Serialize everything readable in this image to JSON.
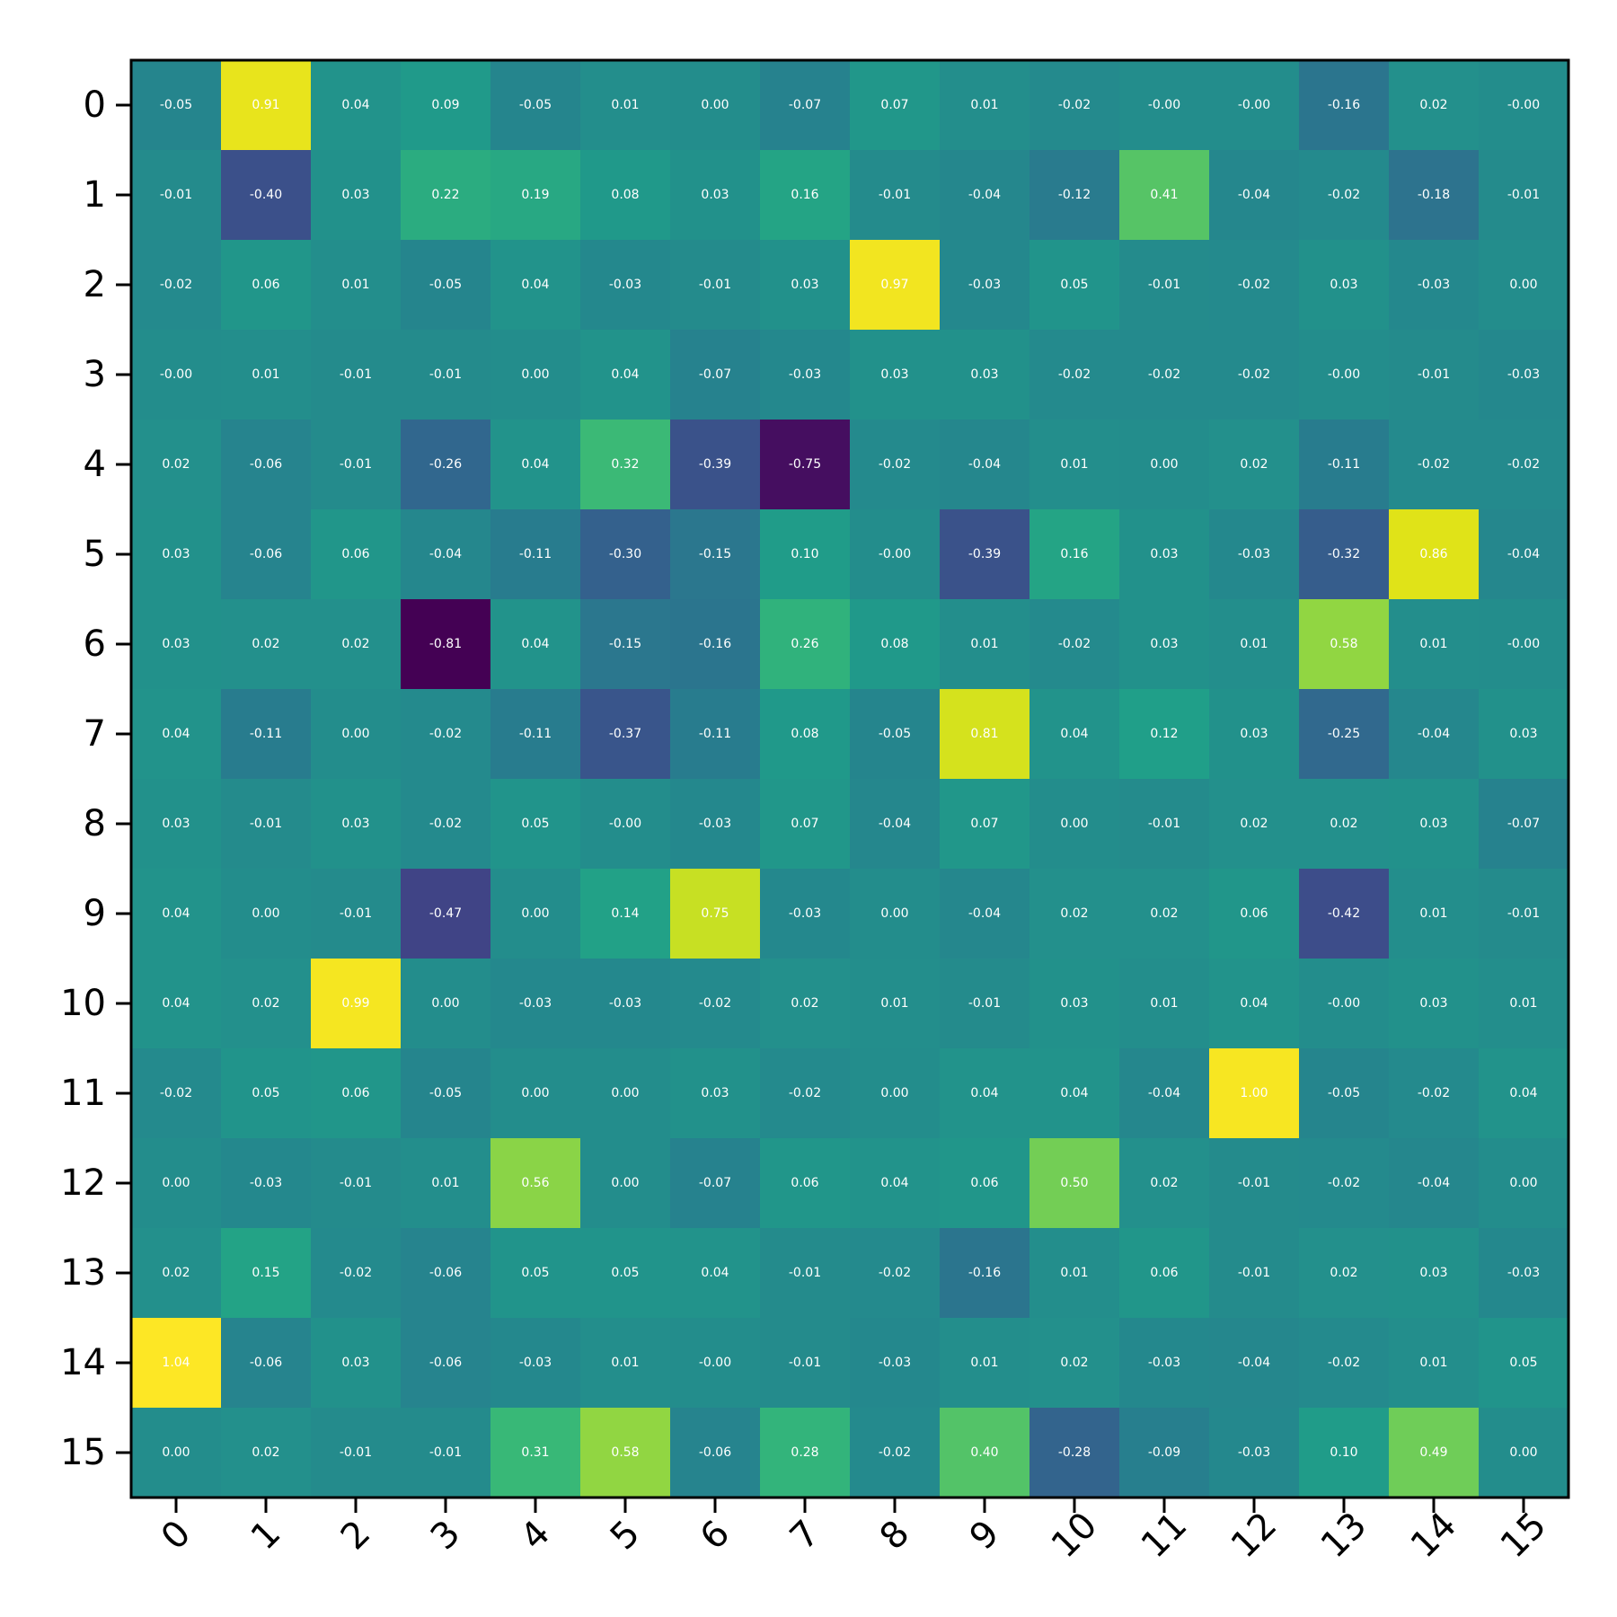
{
  "chart_data": {
    "type": "heatmap",
    "title": "",
    "xlabel": "",
    "ylabel": "",
    "x_ticks": [
      "0",
      "1",
      "2",
      "3",
      "4",
      "5",
      "6",
      "7",
      "8",
      "9",
      "10",
      "11",
      "12",
      "13",
      "14",
      "15"
    ],
    "y_ticks": [
      "0",
      "1",
      "2",
      "3",
      "4",
      "5",
      "6",
      "7",
      "8",
      "9",
      "10",
      "11",
      "12",
      "13",
      "14",
      "15"
    ],
    "colormap": "viridis",
    "vmin": -0.81,
    "vmax": 1.04,
    "cell_labels": [
      [
        "-0.05",
        "0.91",
        "0.04",
        "0.09",
        "-0.05",
        "0.01",
        "0.00",
        "-0.07",
        "0.07",
        "0.01",
        "-0.02",
        "-0.00",
        "-0.00",
        "-0.16",
        "0.02",
        "-0.00"
      ],
      [
        "-0.01",
        "-0.40",
        "0.03",
        "0.22",
        "0.19",
        "0.08",
        "0.03",
        "0.16",
        "-0.01",
        "-0.04",
        "-0.12",
        "0.41",
        "-0.04",
        "-0.02",
        "-0.18",
        "-0.01"
      ],
      [
        "-0.02",
        "0.06",
        "0.01",
        "-0.05",
        "0.04",
        "-0.03",
        "-0.01",
        "0.03",
        "0.97",
        "-0.03",
        "0.05",
        "-0.01",
        "-0.02",
        "0.03",
        "-0.03",
        "0.00"
      ],
      [
        "-0.00",
        "0.01",
        "-0.01",
        "-0.01",
        "0.00",
        "0.04",
        "-0.07",
        "-0.03",
        "0.03",
        "0.03",
        "-0.02",
        "-0.02",
        "-0.02",
        "-0.00",
        "-0.01",
        "-0.03"
      ],
      [
        "0.02",
        "-0.06",
        "-0.01",
        "-0.26",
        "0.04",
        "0.32",
        "-0.39",
        "-0.75",
        "-0.02",
        "-0.04",
        "0.01",
        "0.00",
        "0.02",
        "-0.11",
        "-0.02",
        "-0.02"
      ],
      [
        "0.03",
        "-0.06",
        "0.06",
        "-0.04",
        "-0.11",
        "-0.30",
        "-0.15",
        "0.10",
        "-0.00",
        "-0.39",
        "0.16",
        "0.03",
        "-0.03",
        "-0.32",
        "0.86",
        "-0.04"
      ],
      [
        "0.03",
        "0.02",
        "0.02",
        "-0.81",
        "0.04",
        "-0.15",
        "-0.16",
        "0.26",
        "0.08",
        "0.01",
        "-0.02",
        "0.03",
        "0.01",
        "0.58",
        "0.01",
        "-0.00"
      ],
      [
        "0.04",
        "-0.11",
        "0.00",
        "-0.02",
        "-0.11",
        "-0.37",
        "-0.11",
        "0.08",
        "-0.05",
        "0.81",
        "0.04",
        "0.12",
        "0.03",
        "-0.25",
        "-0.04",
        "0.03"
      ],
      [
        "0.03",
        "-0.01",
        "0.03",
        "-0.02",
        "0.05",
        "-0.00",
        "-0.03",
        "0.07",
        "-0.04",
        "0.07",
        "0.00",
        "-0.01",
        "0.02",
        "0.02",
        "0.03",
        "-0.07"
      ],
      [
        "0.04",
        "0.00",
        "-0.01",
        "-0.47",
        "0.00",
        "0.14",
        "0.75",
        "-0.03",
        "0.00",
        "-0.04",
        "0.02",
        "0.02",
        "0.06",
        "-0.42",
        "0.01",
        "-0.01"
      ],
      [
        "0.04",
        "0.02",
        "0.99",
        "0.00",
        "-0.03",
        "-0.03",
        "-0.02",
        "0.02",
        "0.01",
        "-0.01",
        "0.03",
        "0.01",
        "0.04",
        "-0.00",
        "0.03",
        "0.01"
      ],
      [
        "-0.02",
        "0.05",
        "0.06",
        "-0.05",
        "0.00",
        "0.00",
        "0.03",
        "-0.02",
        "0.00",
        "0.04",
        "0.04",
        "-0.04",
        "1.00",
        "-0.05",
        "-0.02",
        "0.04"
      ],
      [
        "0.00",
        "-0.03",
        "-0.01",
        "0.01",
        "0.56",
        "0.00",
        "-0.07",
        "0.06",
        "0.04",
        "0.06",
        "0.50",
        "0.02",
        "-0.01",
        "-0.02",
        "-0.04",
        "0.00"
      ],
      [
        "0.02",
        "0.15",
        "-0.02",
        "-0.06",
        "0.05",
        "0.05",
        "0.04",
        "-0.01",
        "-0.02",
        "-0.16",
        "0.01",
        "0.06",
        "-0.01",
        "0.02",
        "0.03",
        "-0.03"
      ],
      [
        "1.04",
        "-0.06",
        "0.03",
        "-0.06",
        "-0.03",
        "0.01",
        "-0.00",
        "-0.01",
        "-0.03",
        "0.01",
        "0.02",
        "-0.03",
        "-0.04",
        "-0.02",
        "0.01",
        "0.05"
      ],
      [
        "0.00",
        "0.02",
        "-0.01",
        "-0.01",
        "0.31",
        "0.58",
        "-0.06",
        "0.28",
        "-0.02",
        "0.40",
        "-0.28",
        "-0.09",
        "-0.03",
        "0.10",
        "0.49",
        "0.00"
      ]
    ],
    "grid": false,
    "legend": "none"
  }
}
